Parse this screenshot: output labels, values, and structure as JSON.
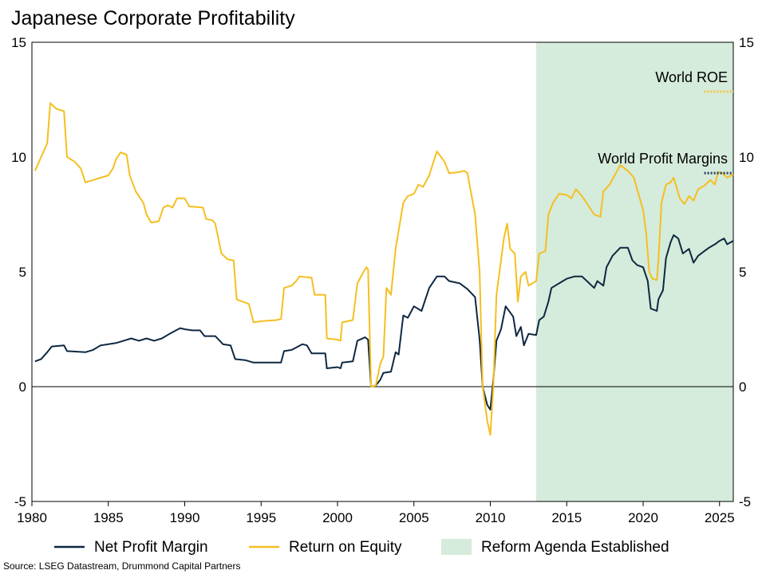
{
  "chart_data": {
    "type": "line",
    "title": "Japanese Corporate Profitability",
    "source": "Source: LSEG Datastream, Drummond Capital Partners",
    "xlim": [
      1980,
      2025.9
    ],
    "ylim": [
      -5,
      15
    ],
    "x_ticks": [
      1980,
      1985,
      1990,
      1995,
      2000,
      2005,
      2010,
      2015,
      2020,
      2025
    ],
    "y_ticks": [
      -5,
      0,
      5,
      10,
      15
    ],
    "shaded_region": {
      "label": "Reform Agenda Established",
      "x_start": 2013,
      "x_end": 2025.9,
      "color": "#d5ebdb"
    },
    "annotations": [
      {
        "text": "World ROE",
        "value": 12.85,
        "x_start": 2024,
        "x_end": 2025.9,
        "color": "#f6c344"
      },
      {
        "text": "World Profit Margins",
        "value": 9.3,
        "x_start": 2024,
        "x_end": 2025.9,
        "color": "#2b3d5c"
      }
    ],
    "series": [
      {
        "name": "Net Profit Margin",
        "color": "#0e2841",
        "points": [
          [
            1980.2,
            1.1
          ],
          [
            1980.6,
            1.2
          ],
          [
            1981.0,
            1.5
          ],
          [
            1981.3,
            1.75
          ],
          [
            1982.1,
            1.8
          ],
          [
            1982.3,
            1.55
          ],
          [
            1983.5,
            1.5
          ],
          [
            1984.0,
            1.6
          ],
          [
            1984.5,
            1.8
          ],
          [
            1985.5,
            1.9
          ],
          [
            1986.0,
            2.0
          ],
          [
            1986.5,
            2.1
          ],
          [
            1987.0,
            2.0
          ],
          [
            1987.5,
            2.1
          ],
          [
            1988.0,
            2.0
          ],
          [
            1988.5,
            2.1
          ],
          [
            1989.0,
            2.3
          ],
          [
            1989.7,
            2.55
          ],
          [
            1990.0,
            2.5
          ],
          [
            1990.5,
            2.45
          ],
          [
            1991.0,
            2.45
          ],
          [
            1991.3,
            2.2
          ],
          [
            1992.0,
            2.2
          ],
          [
            1992.5,
            1.85
          ],
          [
            1993.0,
            1.8
          ],
          [
            1993.3,
            1.2
          ],
          [
            1994.0,
            1.15
          ],
          [
            1994.5,
            1.05
          ],
          [
            1995.5,
            1.05
          ],
          [
            1996.3,
            1.05
          ],
          [
            1996.5,
            1.55
          ],
          [
            1997.0,
            1.6
          ],
          [
            1997.7,
            1.85
          ],
          [
            1998.0,
            1.8
          ],
          [
            1998.3,
            1.45
          ],
          [
            1999.2,
            1.45
          ],
          [
            1999.3,
            0.8
          ],
          [
            2000.0,
            0.85
          ],
          [
            2000.2,
            0.8
          ],
          [
            2000.3,
            1.05
          ],
          [
            2001.0,
            1.1
          ],
          [
            2001.3,
            2.0
          ],
          [
            2001.8,
            2.15
          ],
          [
            2002.0,
            2.05
          ],
          [
            2002.2,
            0.0
          ],
          [
            2002.5,
            0.05
          ],
          [
            2002.8,
            0.3
          ],
          [
            2003.0,
            0.6
          ],
          [
            2003.5,
            0.65
          ],
          [
            2003.8,
            1.5
          ],
          [
            2004.0,
            1.4
          ],
          [
            2004.3,
            3.1
          ],
          [
            2004.6,
            3.0
          ],
          [
            2005.0,
            3.5
          ],
          [
            2005.5,
            3.3
          ],
          [
            2006.0,
            4.3
          ],
          [
            2006.5,
            4.8
          ],
          [
            2007.0,
            4.8
          ],
          [
            2007.3,
            4.6
          ],
          [
            2008.0,
            4.5
          ],
          [
            2008.5,
            4.25
          ],
          [
            2009.0,
            3.9
          ],
          [
            2009.3,
            2.05
          ],
          [
            2009.5,
            0.0
          ],
          [
            2009.8,
            -0.8
          ],
          [
            2010.0,
            -1.0
          ],
          [
            2010.2,
            0.3
          ],
          [
            2010.4,
            2.0
          ],
          [
            2010.7,
            2.5
          ],
          [
            2011.0,
            3.5
          ],
          [
            2011.5,
            3.05
          ],
          [
            2011.7,
            2.2
          ],
          [
            2012.0,
            2.6
          ],
          [
            2012.2,
            1.8
          ],
          [
            2012.5,
            2.3
          ],
          [
            2013.0,
            2.25
          ],
          [
            2013.2,
            2.9
          ],
          [
            2013.5,
            3.05
          ],
          [
            2013.8,
            3.7
          ],
          [
            2014.0,
            4.3
          ],
          [
            2014.5,
            4.5
          ],
          [
            2015.0,
            4.7
          ],
          [
            2015.5,
            4.8
          ],
          [
            2016.0,
            4.8
          ],
          [
            2016.4,
            4.55
          ],
          [
            2016.8,
            4.3
          ],
          [
            2017.0,
            4.6
          ],
          [
            2017.4,
            4.4
          ],
          [
            2017.6,
            5.2
          ],
          [
            2018.0,
            5.7
          ],
          [
            2018.5,
            6.05
          ],
          [
            2019.0,
            6.05
          ],
          [
            2019.3,
            5.5
          ],
          [
            2019.6,
            5.3
          ],
          [
            2020.0,
            5.2
          ],
          [
            2020.3,
            4.6
          ],
          [
            2020.5,
            3.4
          ],
          [
            2020.9,
            3.3
          ],
          [
            2021.0,
            3.8
          ],
          [
            2021.3,
            4.2
          ],
          [
            2021.5,
            5.6
          ],
          [
            2021.8,
            6.3
          ],
          [
            2022.0,
            6.6
          ],
          [
            2022.3,
            6.45
          ],
          [
            2022.6,
            5.8
          ],
          [
            2023.0,
            6.0
          ],
          [
            2023.3,
            5.4
          ],
          [
            2023.6,
            5.7
          ],
          [
            2024.0,
            5.9
          ],
          [
            2024.3,
            6.05
          ],
          [
            2024.7,
            6.2
          ],
          [
            2025.0,
            6.35
          ],
          [
            2025.3,
            6.45
          ],
          [
            2025.5,
            6.2
          ],
          [
            2025.9,
            6.35
          ]
        ]
      },
      {
        "name": "Return on Equity",
        "color": "#f5bf20",
        "points": [
          [
            1980.2,
            9.4
          ],
          [
            1980.6,
            10.0
          ],
          [
            1981.0,
            10.6
          ],
          [
            1981.2,
            12.35
          ],
          [
            1981.6,
            12.1
          ],
          [
            1982.1,
            12.0
          ],
          [
            1982.3,
            10.0
          ],
          [
            1982.8,
            9.8
          ],
          [
            1983.2,
            9.5
          ],
          [
            1983.5,
            8.9
          ],
          [
            1984.0,
            9.0
          ],
          [
            1985.0,
            9.2
          ],
          [
            1985.3,
            9.5
          ],
          [
            1985.5,
            9.9
          ],
          [
            1985.8,
            10.2
          ],
          [
            1986.2,
            10.1
          ],
          [
            1986.4,
            9.2
          ],
          [
            1986.8,
            8.5
          ],
          [
            1987.3,
            8.0
          ],
          [
            1987.5,
            7.5
          ],
          [
            1987.8,
            7.15
          ],
          [
            1988.3,
            7.2
          ],
          [
            1988.6,
            7.8
          ],
          [
            1988.9,
            7.9
          ],
          [
            1989.2,
            7.8
          ],
          [
            1989.5,
            8.2
          ],
          [
            1990.0,
            8.2
          ],
          [
            1990.3,
            7.85
          ],
          [
            1991.2,
            7.8
          ],
          [
            1991.4,
            7.3
          ],
          [
            1991.8,
            7.25
          ],
          [
            1992.0,
            7.1
          ],
          [
            1992.4,
            5.8
          ],
          [
            1992.8,
            5.55
          ],
          [
            1993.2,
            5.5
          ],
          [
            1993.4,
            3.8
          ],
          [
            1993.8,
            3.7
          ],
          [
            1994.2,
            3.6
          ],
          [
            1994.5,
            2.8
          ],
          [
            1995.0,
            2.85
          ],
          [
            1996.0,
            2.9
          ],
          [
            1996.3,
            2.95
          ],
          [
            1996.5,
            4.3
          ],
          [
            1997.0,
            4.4
          ],
          [
            1997.3,
            4.6
          ],
          [
            1997.5,
            4.8
          ],
          [
            1998.3,
            4.75
          ],
          [
            1998.5,
            4.0
          ],
          [
            1999.2,
            4.0
          ],
          [
            1999.3,
            2.1
          ],
          [
            2000.0,
            2.05
          ],
          [
            2000.2,
            2.0
          ],
          [
            2000.3,
            2.8
          ],
          [
            2001.0,
            2.9
          ],
          [
            2001.3,
            4.5
          ],
          [
            2001.7,
            5.0
          ],
          [
            2001.9,
            5.2
          ],
          [
            2002.0,
            5.1
          ],
          [
            2002.2,
            0.0
          ],
          [
            2002.5,
            0.05
          ],
          [
            2002.8,
            1.0
          ],
          [
            2003.0,
            1.3
          ],
          [
            2003.2,
            4.3
          ],
          [
            2003.5,
            4.0
          ],
          [
            2003.8,
            6.0
          ],
          [
            2004.3,
            8.0
          ],
          [
            2004.6,
            8.3
          ],
          [
            2005.0,
            8.4
          ],
          [
            2005.3,
            8.8
          ],
          [
            2005.6,
            8.7
          ],
          [
            2006.0,
            9.2
          ],
          [
            2006.5,
            10.25
          ],
          [
            2007.0,
            9.8
          ],
          [
            2007.3,
            9.3
          ],
          [
            2008.0,
            9.35
          ],
          [
            2008.3,
            9.4
          ],
          [
            2008.5,
            9.3
          ],
          [
            2009.0,
            7.5
          ],
          [
            2009.3,
            5.0
          ],
          [
            2009.5,
            0.0
          ],
          [
            2009.8,
            -1.5
          ],
          [
            2010.0,
            -2.1
          ],
          [
            2010.2,
            0.0
          ],
          [
            2010.4,
            4.0
          ],
          [
            2010.7,
            5.5
          ],
          [
            2010.9,
            6.5
          ],
          [
            2011.1,
            7.1
          ],
          [
            2011.3,
            6.0
          ],
          [
            2011.6,
            5.8
          ],
          [
            2011.8,
            3.7
          ],
          [
            2012.0,
            4.8
          ],
          [
            2012.3,
            5.0
          ],
          [
            2012.5,
            4.4
          ],
          [
            2013.0,
            4.6
          ],
          [
            2013.2,
            5.8
          ],
          [
            2013.6,
            5.9
          ],
          [
            2013.8,
            7.5
          ],
          [
            2014.1,
            8.0
          ],
          [
            2014.5,
            8.4
          ],
          [
            2015.0,
            8.35
          ],
          [
            2015.3,
            8.2
          ],
          [
            2015.6,
            8.6
          ],
          [
            2016.0,
            8.3
          ],
          [
            2016.4,
            7.9
          ],
          [
            2016.8,
            7.5
          ],
          [
            2017.2,
            7.4
          ],
          [
            2017.4,
            8.5
          ],
          [
            2017.8,
            8.8
          ],
          [
            2018.3,
            9.4
          ],
          [
            2018.5,
            9.65
          ],
          [
            2019.0,
            9.4
          ],
          [
            2019.4,
            9.1
          ],
          [
            2019.6,
            8.6
          ],
          [
            2020.0,
            7.7
          ],
          [
            2020.2,
            6.7
          ],
          [
            2020.4,
            5.0
          ],
          [
            2020.6,
            4.7
          ],
          [
            2020.9,
            4.65
          ],
          [
            2021.0,
            5.5
          ],
          [
            2021.2,
            8.0
          ],
          [
            2021.5,
            8.8
          ],
          [
            2021.8,
            8.9
          ],
          [
            2022.0,
            9.1
          ],
          [
            2022.4,
            8.2
          ],
          [
            2022.7,
            7.95
          ],
          [
            2023.0,
            8.3
          ],
          [
            2023.3,
            8.1
          ],
          [
            2023.6,
            8.6
          ],
          [
            2024.0,
            8.75
          ],
          [
            2024.4,
            9.0
          ],
          [
            2024.7,
            8.8
          ],
          [
            2024.9,
            9.35
          ],
          [
            2025.2,
            9.3
          ],
          [
            2025.5,
            9.1
          ],
          [
            2025.9,
            9.25
          ]
        ]
      }
    ]
  }
}
